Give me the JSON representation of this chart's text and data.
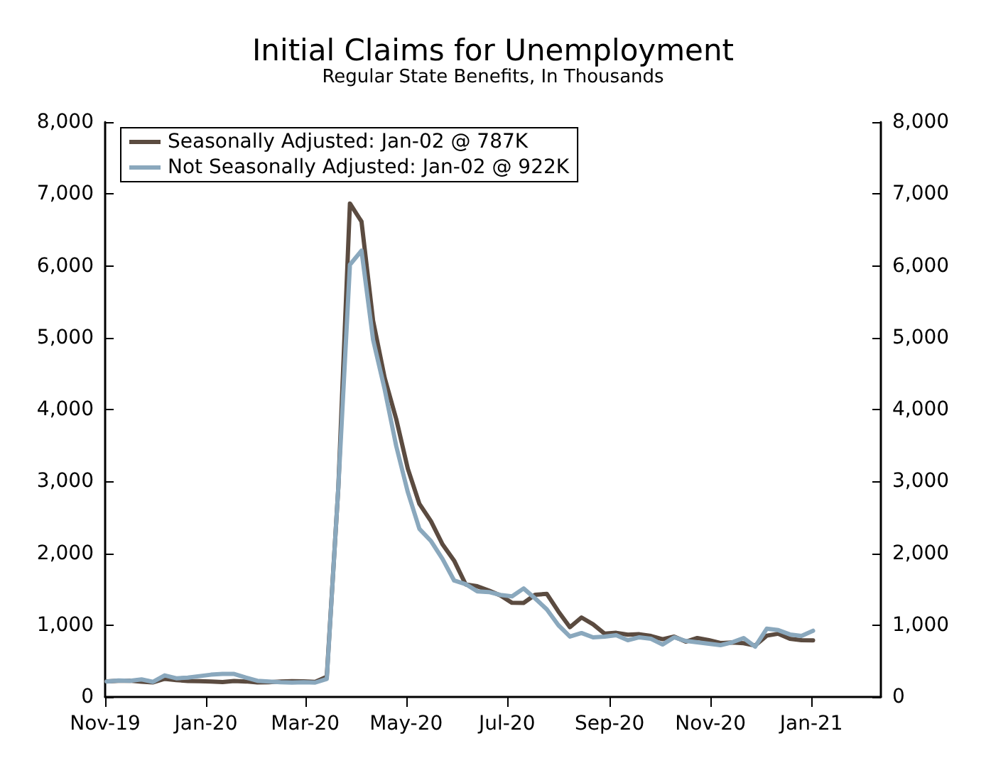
{
  "chart_data": {
    "type": "line",
    "title": "Initial Claims for Unemployment",
    "subtitle": "Regular State Benefits, In Thousands",
    "x": [
      "2019-11-02",
      "2019-11-09",
      "2019-11-16",
      "2019-11-23",
      "2019-11-30",
      "2019-12-07",
      "2019-12-14",
      "2019-12-21",
      "2019-12-28",
      "2020-01-04",
      "2020-01-11",
      "2020-01-18",
      "2020-01-25",
      "2020-02-01",
      "2020-02-08",
      "2020-02-15",
      "2020-02-22",
      "2020-02-29",
      "2020-03-07",
      "2020-03-14",
      "2020-03-21",
      "2020-03-28",
      "2020-04-04",
      "2020-04-11",
      "2020-04-18",
      "2020-04-25",
      "2020-05-02",
      "2020-05-09",
      "2020-05-16",
      "2020-05-23",
      "2020-05-30",
      "2020-06-06",
      "2020-06-13",
      "2020-06-20",
      "2020-06-27",
      "2020-07-04",
      "2020-07-11",
      "2020-07-18",
      "2020-07-25",
      "2020-08-01",
      "2020-08-08",
      "2020-08-15",
      "2020-08-22",
      "2020-08-29",
      "2020-09-05",
      "2020-09-12",
      "2020-09-19",
      "2020-09-26",
      "2020-10-03",
      "2020-10-10",
      "2020-10-17",
      "2020-10-24",
      "2020-10-31",
      "2020-11-07",
      "2020-11-14",
      "2020-11-21",
      "2020-11-28",
      "2020-12-05",
      "2020-12-12",
      "2020-12-19",
      "2020-12-26",
      "2021-01-02"
    ],
    "series": [
      {
        "name": "Seasonally Adjusted: Jan-02 @ 787K",
        "color": "#5b4b40",
        "values": [
          217,
          225,
          228,
          213,
          203,
          252,
          235,
          222,
          220,
          214,
          207,
          223,
          216,
          202,
          205,
          214,
          219,
          217,
          211,
          282,
          2920,
          6867,
          6615,
          5237,
          4442,
          3867,
          3176,
          2687,
          2446,
          2123,
          1897,
          1566,
          1540,
          1482,
          1413,
          1310,
          1309,
          1422,
          1435,
          1191,
          971,
          1106,
          1011,
          881,
          893,
          866,
          873,
          849,
          804,
          840,
          770,
          820,
          790,
          751,
          757,
          748,
          716,
          853,
          880,
          810,
          790,
          787
        ]
      },
      {
        "name": "Not Seasonally Adjusted: Jan-02 @ 922K",
        "color": "#8aa8bd",
        "values": [
          215,
          230,
          225,
          245,
          210,
          300,
          260,
          270,
          290,
          310,
          320,
          320,
          270,
          225,
          215,
          205,
          200,
          205,
          200,
          251,
          2920,
          6015,
          6211,
          4971,
          4281,
          3490,
          2850,
          2340,
          2170,
          1920,
          1620,
          1570,
          1470,
          1460,
          1420,
          1400,
          1510,
          1370,
          1220,
          1000,
          840,
          890,
          830,
          840,
          860,
          790,
          830,
          810,
          730,
          830,
          780,
          760,
          740,
          720,
          760,
          820,
          700,
          950,
          930,
          870,
          850,
          922
        ]
      }
    ],
    "xlim": [
      "2019-11-01",
      "2021-02-12"
    ],
    "xticks": [
      {
        "value": "2019-11-01",
        "label": "Nov-19"
      },
      {
        "value": "2020-01-01",
        "label": "Jan-20"
      },
      {
        "value": "2020-03-01",
        "label": "Mar-20"
      },
      {
        "value": "2020-05-01",
        "label": "May-20"
      },
      {
        "value": "2020-07-01",
        "label": "Jul-20"
      },
      {
        "value": "2020-09-01",
        "label": "Sep-20"
      },
      {
        "value": "2020-11-01",
        "label": "Nov-20"
      },
      {
        "value": "2021-01-01",
        "label": "Jan-21"
      }
    ],
    "ylim": [
      0,
      8000
    ],
    "yticks": [
      0,
      {
        "value": 1000,
        "label": "1,000"
      },
      {
        "value": 2000,
        "label": "2,000"
      },
      {
        "value": 3000,
        "label": "3,000"
      },
      {
        "value": 4000,
        "label": "4,000"
      },
      {
        "value": 5000,
        "label": "5,000"
      },
      {
        "value": 6000,
        "label": "6,000"
      },
      {
        "value": 7000,
        "label": "7,000"
      },
      {
        "value": 8000,
        "label": "8,000"
      }
    ],
    "y2lim": [
      0,
      8000
    ],
    "y2ticks": [
      0,
      {
        "value": 1000,
        "label": "1,000"
      },
      {
        "value": 2000,
        "label": "2,000"
      },
      {
        "value": 3000,
        "label": "3,000"
      },
      {
        "value": 4000,
        "label": "4,000"
      },
      {
        "value": 5000,
        "label": "5,000"
      },
      {
        "value": 6000,
        "label": "6,000"
      },
      {
        "value": 7000,
        "label": "7,000"
      },
      {
        "value": 8000,
        "label": "8,000"
      }
    ],
    "grid": false,
    "legend": "top left",
    "marker": "none",
    "line_style": "solid"
  }
}
